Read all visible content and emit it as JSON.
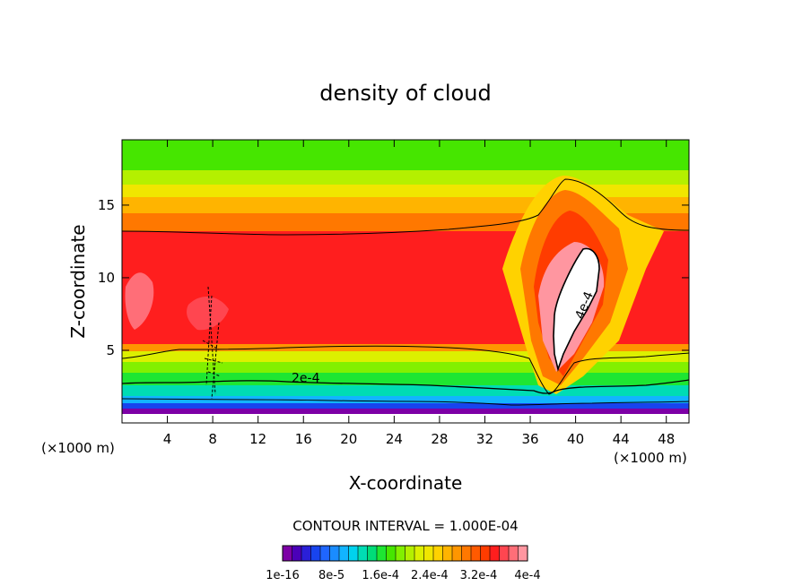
{
  "chart_data": {
    "type": "heatmap",
    "title": "density of cloud",
    "xlabel": "X-coordinate",
    "ylabel": "Z-coordinate",
    "x_unit_label": "(×1000 m)",
    "y_unit_label": "(×1000 m)",
    "xlim": [
      0,
      50
    ],
    "ylim": [
      0,
      19.5
    ],
    "x_ticks": [
      4,
      8,
      12,
      16,
      20,
      24,
      28,
      32,
      36,
      40,
      44,
      48
    ],
    "y_ticks": [
      5,
      10,
      15
    ],
    "contour_interval_label": "CONTOUR INTERVAL = 1.000E-04",
    "contour_labels": [
      {
        "text": "2e-4",
        "x": 16.2,
        "z": 2.8
      },
      {
        "text": "4e-4",
        "x": 41.1,
        "z": 8.0
      }
    ],
    "colorbar_labels": [
      "1e-16",
      "8e-5",
      "1.6e-4",
      "2.4e-4",
      "3.2e-4",
      "4e-4"
    ],
    "colorbar_colors": [
      "#7d00a6",
      "#4b00b8",
      "#2a1fd8",
      "#1844ee",
      "#1f66ff",
      "#1a8cff",
      "#12b4ff",
      "#00d2ee",
      "#00dcb4",
      "#00dc78",
      "#1ee632",
      "#46e600",
      "#82f000",
      "#b4f000",
      "#dcf000",
      "#f0e600",
      "#ffd200",
      "#ffb400",
      "#ff9600",
      "#ff7800",
      "#ff5a00",
      "#ff3c00",
      "#ff1e1e",
      "#ff4650",
      "#ff6e78",
      "#ff96a0"
    ],
    "value_range": [
      1e-16,
      0.0004
    ]
  }
}
